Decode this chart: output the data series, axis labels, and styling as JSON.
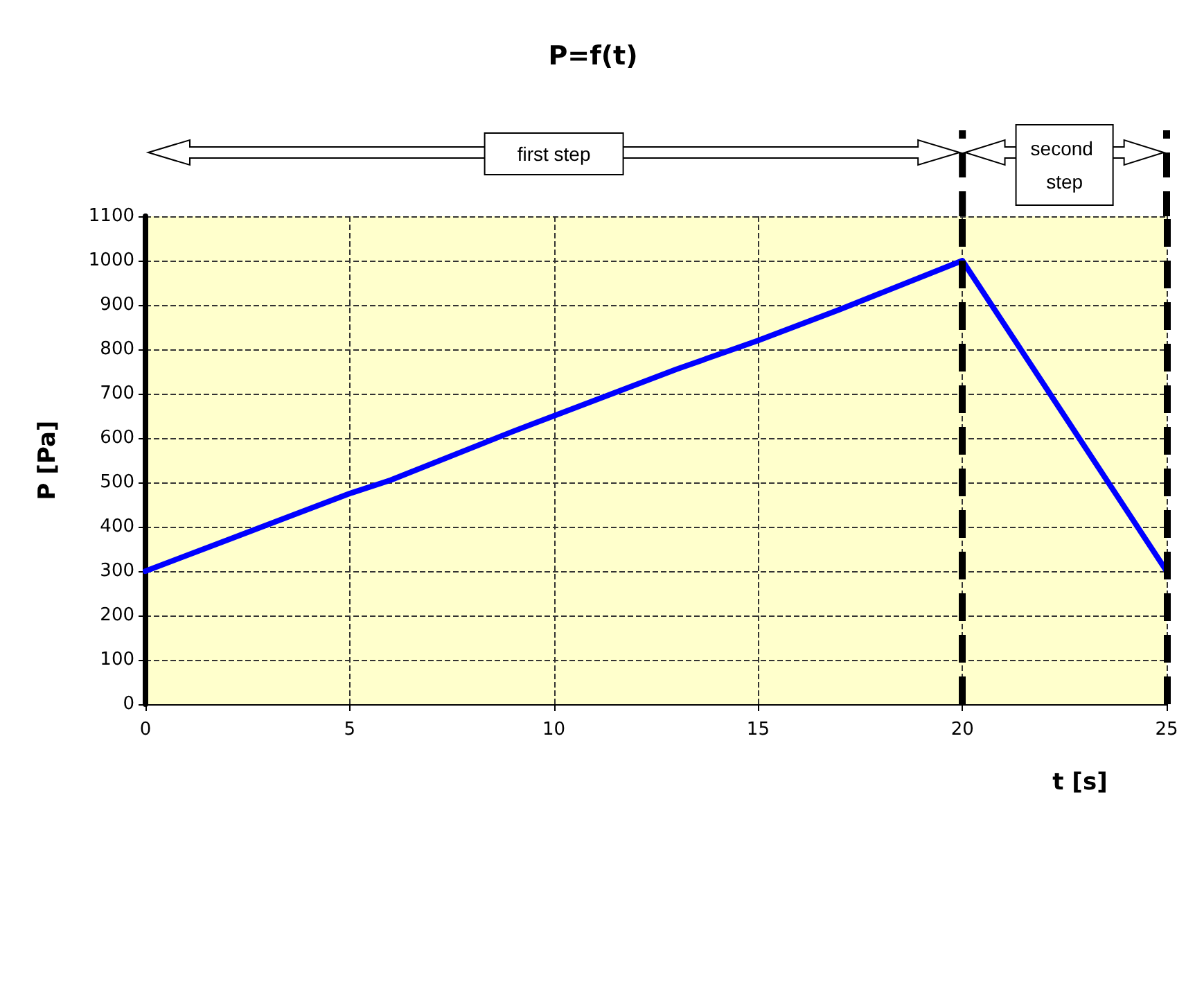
{
  "chart_data": {
    "type": "line",
    "title": "P=f(t)",
    "xlabel": "t [s]",
    "ylabel": "P [Pa]",
    "x": [
      0,
      2,
      5,
      6,
      9,
      10,
      13,
      15,
      17,
      20,
      25
    ],
    "series": [
      {
        "color": "#0000ff",
        "values": [
          300,
          370,
          475,
          505,
          615,
          650,
          755,
          820,
          890,
          1000,
          300
        ]
      }
    ],
    "xlim": [
      0,
      25
    ],
    "xticks": [
      0,
      5,
      10,
      15,
      20,
      25
    ],
    "ylim": [
      0,
      1100
    ],
    "yticks": [
      0,
      100,
      200,
      300,
      400,
      500,
      600,
      700,
      800,
      900,
      1000,
      1100
    ],
    "grid": true,
    "marker": "none",
    "line_style": "solid",
    "ref_lines": [
      {
        "axis": "x",
        "value": 20,
        "color": "#000000",
        "line_style": "dashed"
      },
      {
        "axis": "x",
        "value": 25,
        "color": "#000000",
        "line_style": "dashed"
      }
    ],
    "annotations": [
      "first step",
      "second step"
    ]
  }
}
